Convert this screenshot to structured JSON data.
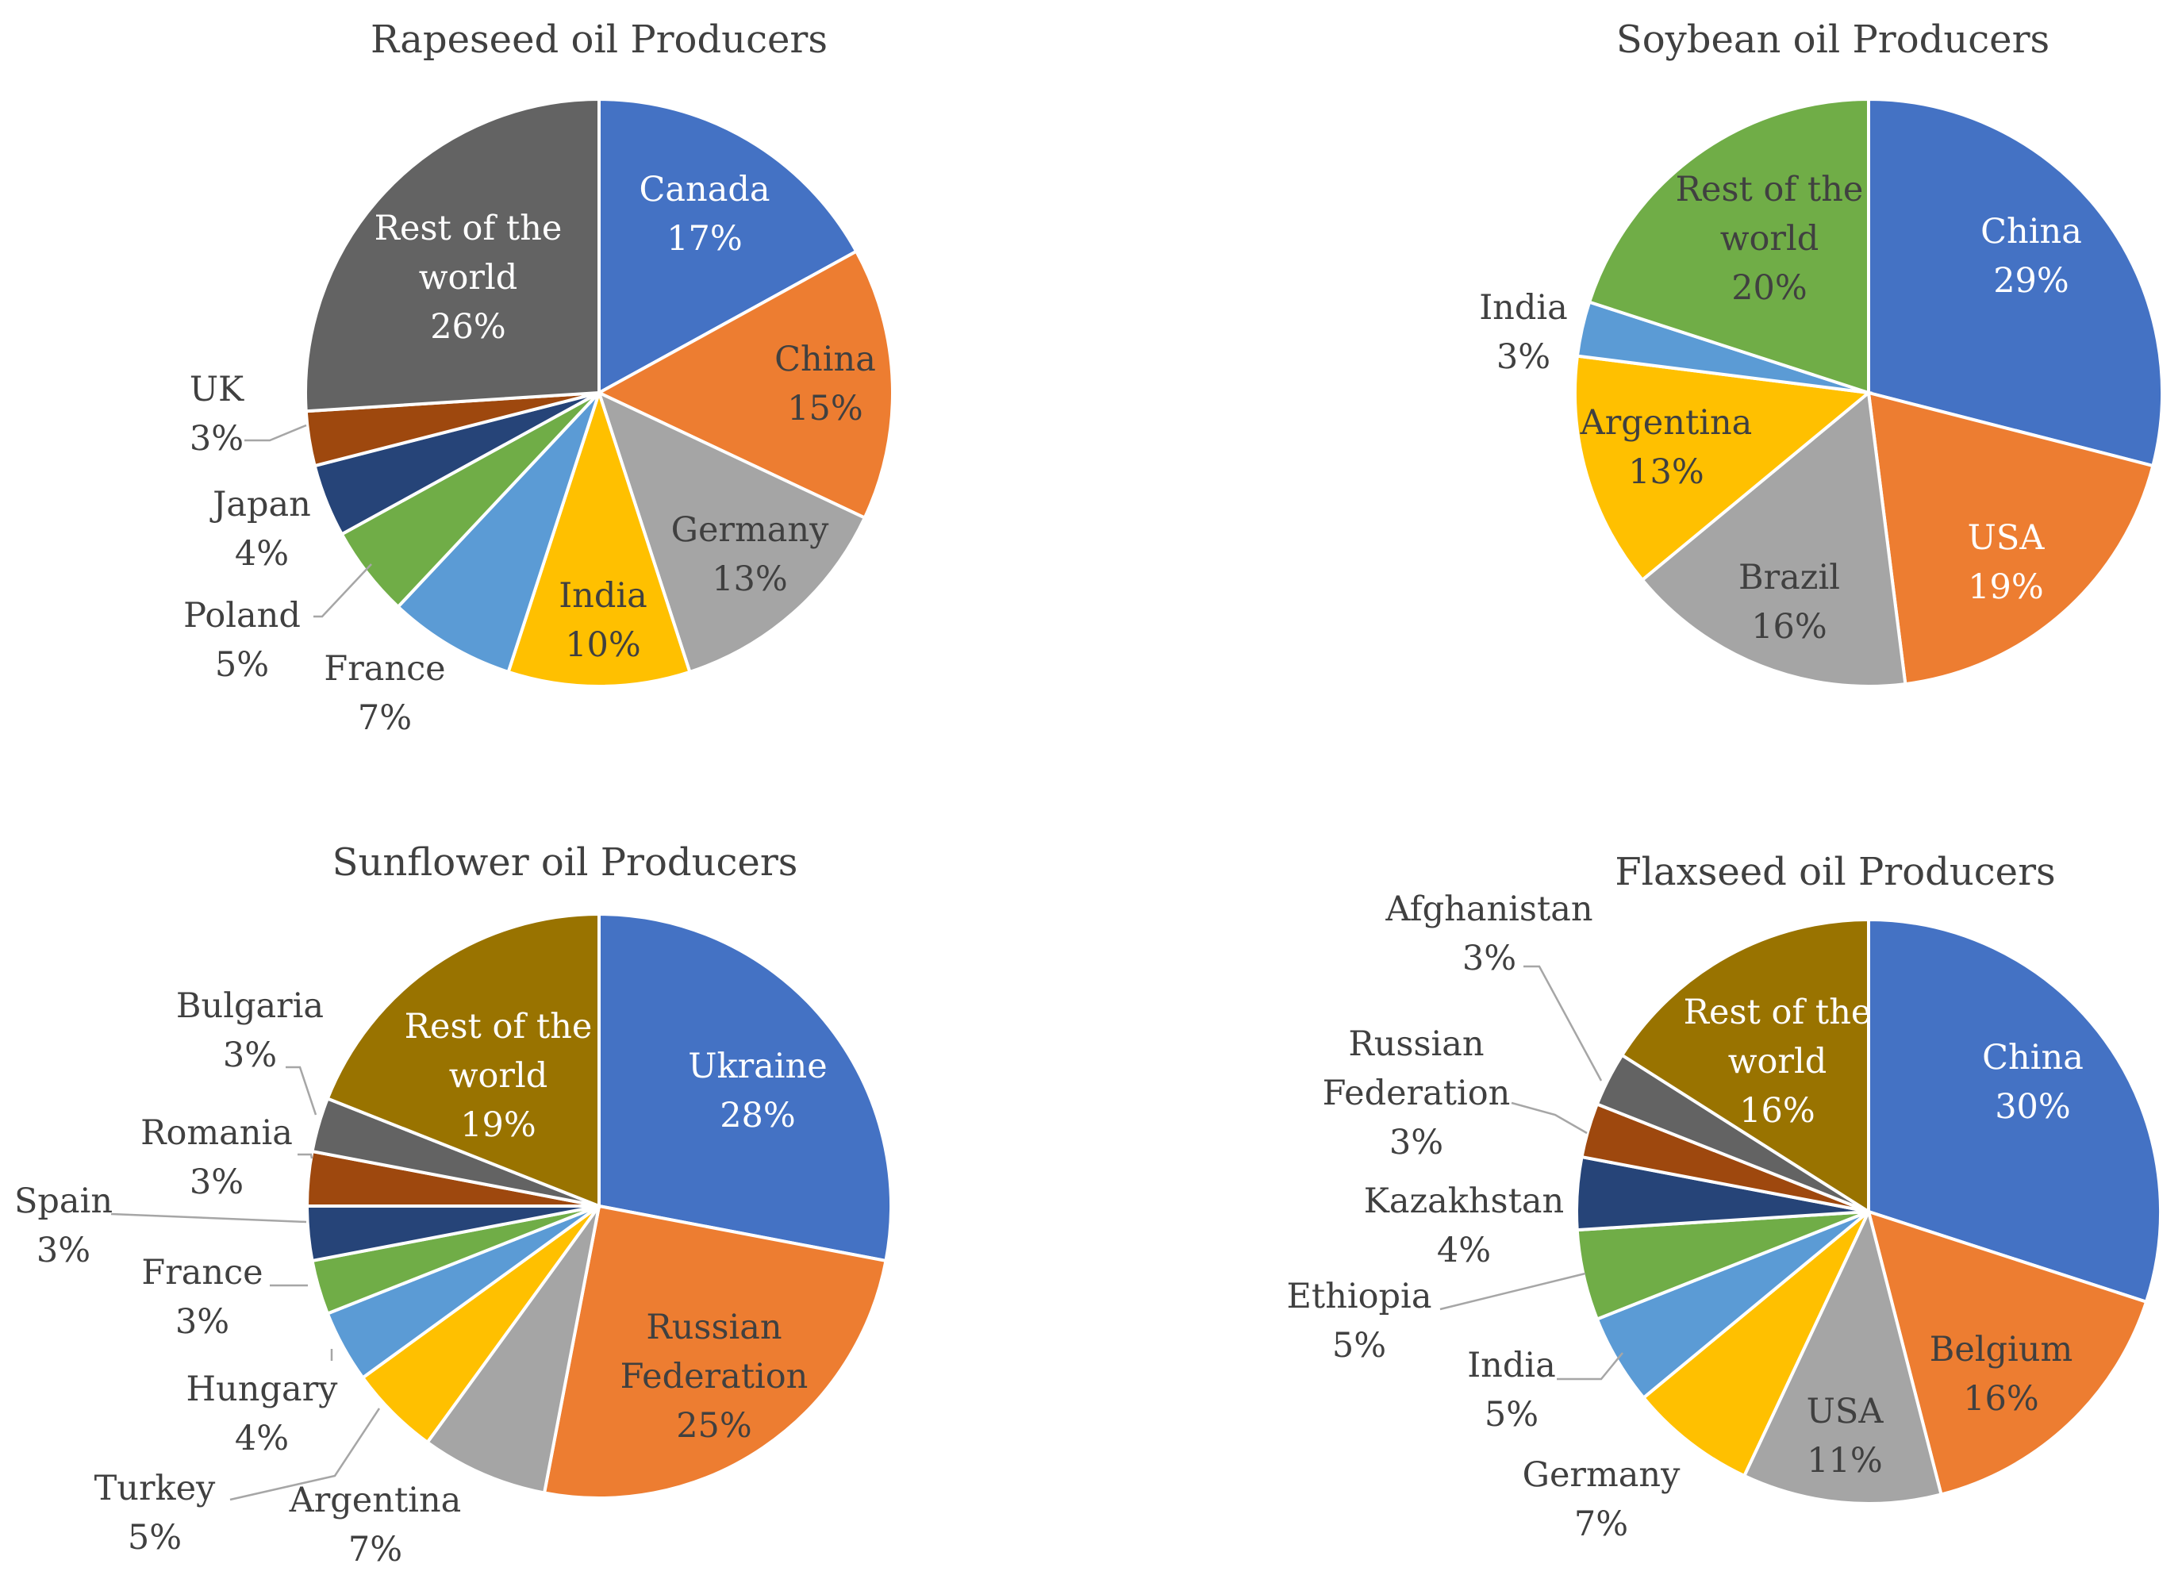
{
  "chart_data": [
    {
      "type": "pie",
      "title": "Rapeseed  oil Producers",
      "slices": [
        {
          "name": "Canada",
          "lines": [
            "Canada"
          ],
          "pct_label": "17%",
          "value": 17,
          "color": "#4472c4",
          "label_color": "#ffffff"
        },
        {
          "name": "China",
          "lines": [
            "China"
          ],
          "pct_label": "15%",
          "value": 15,
          "color": "#ed7d31",
          "label_color": "#404040"
        },
        {
          "name": "Germany",
          "lines": [
            "Germany"
          ],
          "pct_label": "13%",
          "value": 13,
          "color": "#a5a5a5",
          "label_color": "#404040"
        },
        {
          "name": "India",
          "lines": [
            "India"
          ],
          "pct_label": "10%",
          "value": 10,
          "color": "#ffc000",
          "label_color": "#404040"
        },
        {
          "name": "France",
          "lines": [
            "France"
          ],
          "pct_label": "7%",
          "value": 7,
          "color": "#5b9bd5",
          "label_color": "#404040"
        },
        {
          "name": "Poland",
          "lines": [
            "Poland"
          ],
          "pct_label": "5%",
          "value": 5,
          "color": "#70ad47",
          "label_color": "#404040"
        },
        {
          "name": "Japan",
          "lines": [
            "Japan"
          ],
          "pct_label": "4%",
          "value": 4,
          "color": "#264478",
          "label_color": "#404040"
        },
        {
          "name": "UK",
          "lines": [
            "UK"
          ],
          "pct_label": "3%",
          "value": 3,
          "color": "#9e480e",
          "label_color": "#404040"
        },
        {
          "name": "Rest of the world",
          "lines": [
            "Rest of the",
            "world"
          ],
          "pct_label": "26%",
          "value": 26,
          "color": "#636363",
          "label_color": "#ffffff"
        }
      ]
    },
    {
      "type": "pie",
      "title": "Soybean oil Producers",
      "slices": [
        {
          "name": "China",
          "lines": [
            "China"
          ],
          "pct_label": "29%",
          "value": 29,
          "color": "#4472c4",
          "label_color": "#ffffff"
        },
        {
          "name": "USA",
          "lines": [
            "USA"
          ],
          "pct_label": "19%",
          "value": 19,
          "color": "#ed7d31",
          "label_color": "#ffffff"
        },
        {
          "name": "Brazil",
          "lines": [
            "Brazil"
          ],
          "pct_label": "16%",
          "value": 16,
          "color": "#a5a5a5",
          "label_color": "#404040"
        },
        {
          "name": "Argentina",
          "lines": [
            "Argentina"
          ],
          "pct_label": "13%",
          "value": 13,
          "color": "#ffc000",
          "label_color": "#404040"
        },
        {
          "name": "India",
          "lines": [
            "India"
          ],
          "pct_label": "3%",
          "value": 3,
          "color": "#5b9bd5",
          "label_color": "#404040"
        },
        {
          "name": "Rest of the world",
          "lines": [
            "Rest of the",
            "world"
          ],
          "pct_label": "20%",
          "value": 20,
          "color": "#70ad47",
          "label_color": "#404040"
        }
      ]
    },
    {
      "type": "pie",
      "title": "Sunflower oil Producers",
      "slices": [
        {
          "name": "Ukraine",
          "lines": [
            "Ukraine"
          ],
          "pct_label": "28%",
          "value": 28,
          "color": "#4472c4",
          "label_color": "#ffffff"
        },
        {
          "name": "Russian Federation",
          "lines": [
            "Russian",
            "Federation"
          ],
          "pct_label": "25%",
          "value": 25,
          "color": "#ed7d31",
          "label_color": "#404040"
        },
        {
          "name": "Argentina",
          "lines": [
            "Argentina"
          ],
          "pct_label": "7%",
          "value": 7,
          "color": "#a5a5a5",
          "label_color": "#404040"
        },
        {
          "name": "Turkey",
          "lines": [
            "Turkey"
          ],
          "pct_label": "5%",
          "value": 5,
          "color": "#ffc000",
          "label_color": "#404040"
        },
        {
          "name": "Hungary",
          "lines": [
            "Hungary"
          ],
          "pct_label": "4%",
          "value": 4,
          "color": "#5b9bd5",
          "label_color": "#404040"
        },
        {
          "name": "France",
          "lines": [
            "France"
          ],
          "pct_label": "3%",
          "value": 3,
          "color": "#70ad47",
          "label_color": "#404040"
        },
        {
          "name": "Spain",
          "lines": [
            "Spain"
          ],
          "pct_label": "3%",
          "value": 3,
          "color": "#264478",
          "label_color": "#404040"
        },
        {
          "name": "Romania",
          "lines": [
            "Romania"
          ],
          "pct_label": "3%",
          "value": 3,
          "color": "#9e480e",
          "label_color": "#404040"
        },
        {
          "name": "Bulgaria",
          "lines": [
            "Bulgaria"
          ],
          "pct_label": "3%",
          "value": 3,
          "color": "#636363",
          "label_color": "#404040"
        },
        {
          "name": "Rest of the world",
          "lines": [
            "Rest of the",
            "world"
          ],
          "pct_label": "19%",
          "value": 19,
          "color": "#997300",
          "label_color": "#ffffff"
        }
      ]
    },
    {
      "type": "pie",
      "title": "Flaxseed oil Producers",
      "slices": [
        {
          "name": "China",
          "lines": [
            "China"
          ],
          "pct_label": "30%",
          "value": 30,
          "color": "#4472c4",
          "label_color": "#ffffff"
        },
        {
          "name": "Belgium",
          "lines": [
            "Belgium"
          ],
          "pct_label": "16%",
          "value": 16,
          "color": "#ed7d31",
          "label_color": "#404040"
        },
        {
          "name": "USA",
          "lines": [
            "USA"
          ],
          "pct_label": "11%",
          "value": 11,
          "color": "#a5a5a5",
          "label_color": "#404040"
        },
        {
          "name": "Germany",
          "lines": [
            "Germany"
          ],
          "pct_label": "7%",
          "value": 7,
          "color": "#ffc000",
          "label_color": "#404040"
        },
        {
          "name": "India",
          "lines": [
            "India"
          ],
          "pct_label": "5%",
          "value": 5,
          "color": "#5b9bd5",
          "label_color": "#404040"
        },
        {
          "name": "Ethiopia",
          "lines": [
            "Ethiopia"
          ],
          "pct_label": "5%",
          "value": 5,
          "color": "#70ad47",
          "label_color": "#404040"
        },
        {
          "name": "Kazakhstan",
          "lines": [
            "Kazakhstan"
          ],
          "pct_label": "4%",
          "value": 4,
          "color": "#264478",
          "label_color": "#404040"
        },
        {
          "name": "Russian Federation",
          "lines": [
            "Russian",
            "Federation"
          ],
          "pct_label": "3%",
          "value": 3,
          "color": "#9e480e",
          "label_color": "#404040"
        },
        {
          "name": "Afghanistan",
          "lines": [
            "Afghanistan"
          ],
          "pct_label": "3%",
          "value": 3,
          "color": "#636363",
          "label_color": "#404040"
        },
        {
          "name": "Rest of the world",
          "lines": [
            "Rest of the",
            "world"
          ],
          "pct_label": "16%",
          "value": 16,
          "color": "#997300",
          "label_color": "#ffffff"
        }
      ]
    }
  ]
}
